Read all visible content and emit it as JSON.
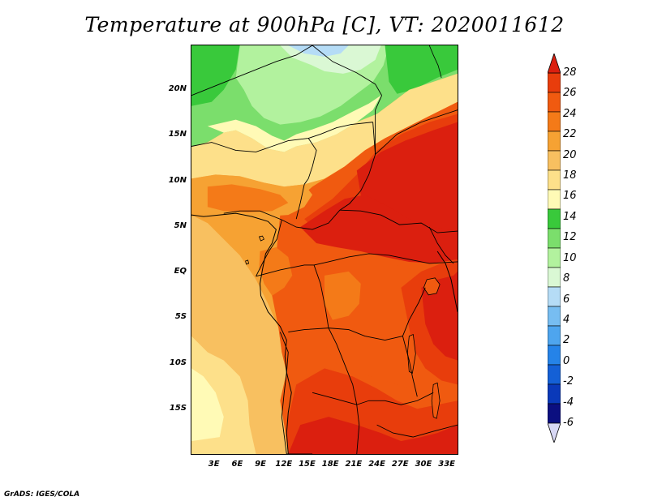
{
  "title": "Temperature at 900hPa [C], VT: 2020011612",
  "credit": "GrADS: IGES/COLA",
  "map": {
    "lat_labels": [
      "20N",
      "15N",
      "10N",
      "5N",
      "EQ",
      "5S",
      "10S",
      "15S"
    ],
    "lon_labels": [
      "3E",
      "6E",
      "9E",
      "12E",
      "15E",
      "18E",
      "21E",
      "24E",
      "27E",
      "30E",
      "33E"
    ],
    "lat_range": [
      -20,
      25
    ],
    "lon_range": [
      0,
      34.5
    ]
  },
  "colorbar": {
    "labels": [
      "28",
      "26",
      "24",
      "22",
      "20",
      "18",
      "16",
      "14",
      "12",
      "10",
      "8",
      "6",
      "4",
      "2",
      "0",
      "-2",
      "-4",
      "-6"
    ],
    "colors": [
      "#db1f0f",
      "#e83d0c",
      "#f05a10",
      "#f47a18",
      "#f6a233",
      "#f8c060",
      "#fde08a",
      "#fffab6",
      "#39c93b",
      "#7bde6c",
      "#b2f29e",
      "#daf8d4",
      "#b5dcf6",
      "#77bdf1",
      "#4ea5ee",
      "#2583e8",
      "#1460d6",
      "#0a39b9",
      "#0b0f80",
      "#d8d8f5"
    ]
  }
}
